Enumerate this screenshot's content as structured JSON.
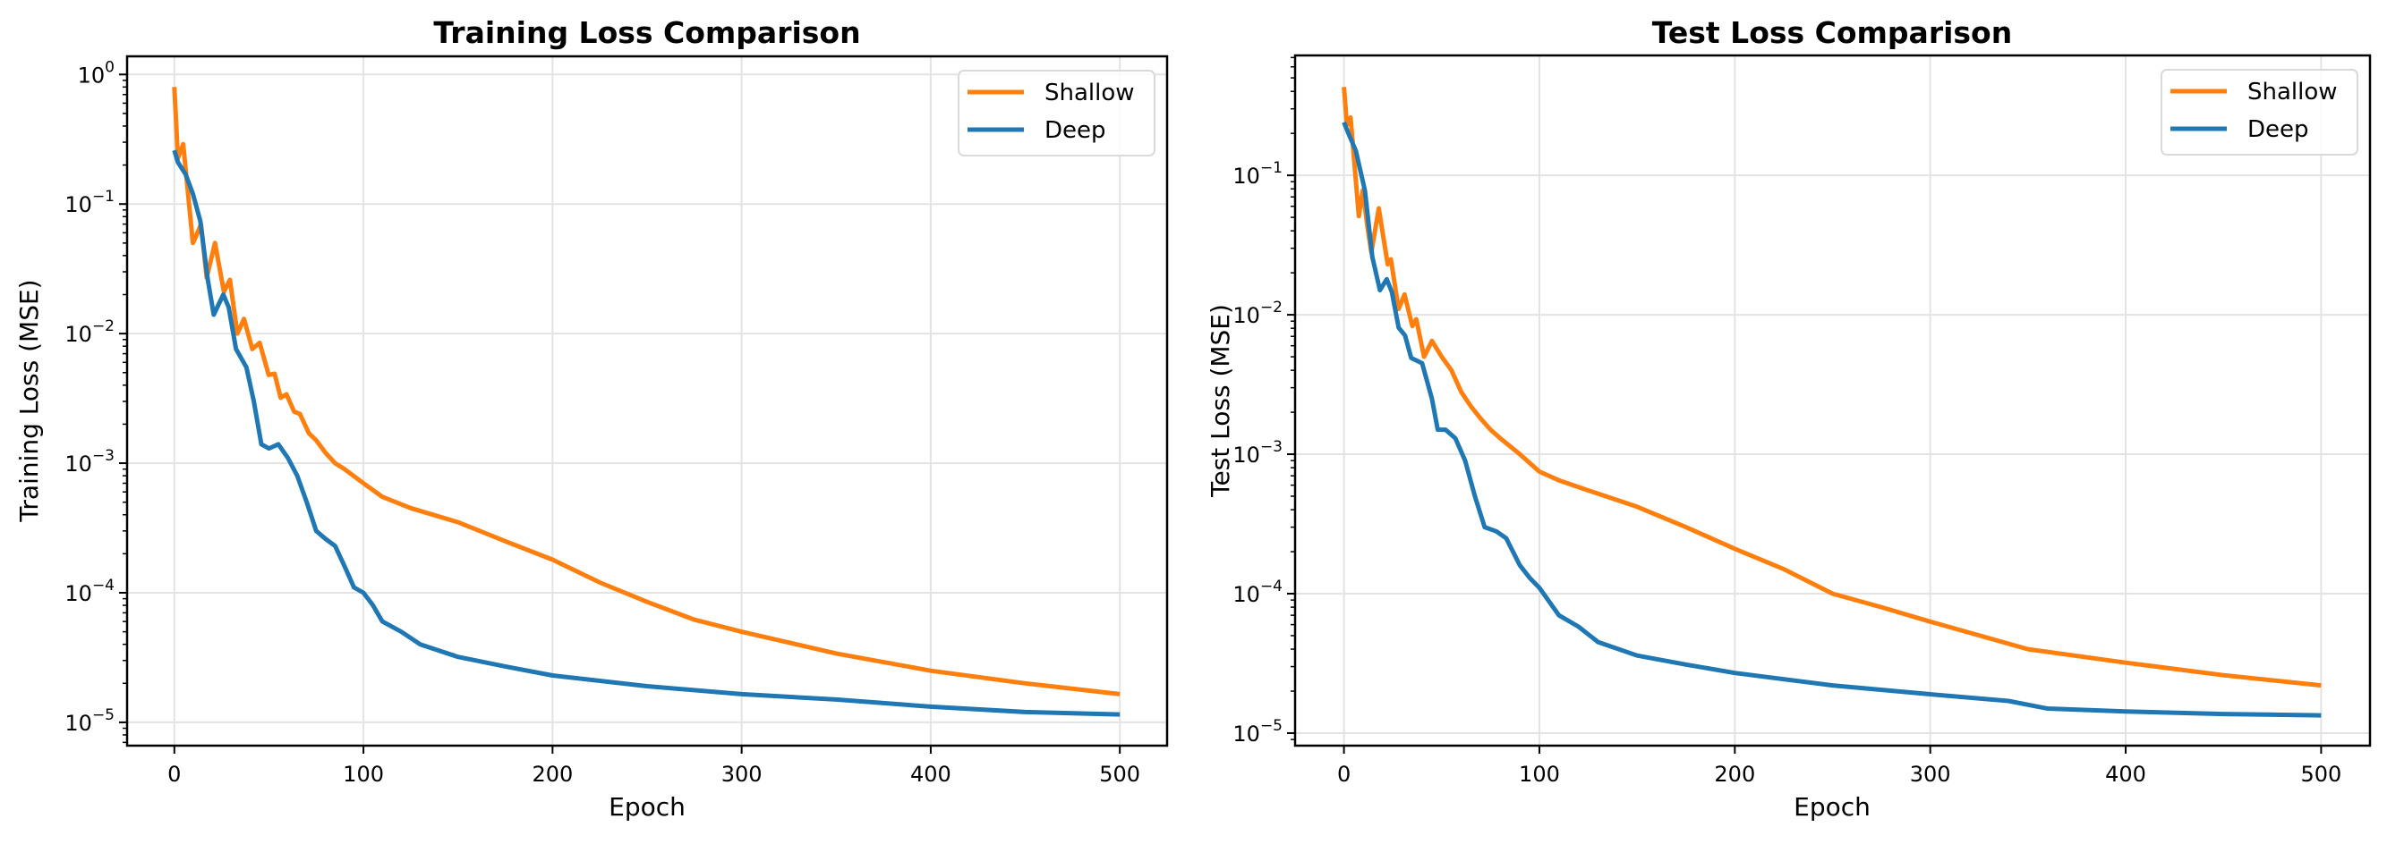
{
  "chart_data": [
    {
      "type": "line",
      "title": "Training Loss Comparison",
      "xlabel": "Epoch",
      "ylabel": "Training Loss (MSE)",
      "xlim": [
        -25,
        525
      ],
      "ylim_log10": [
        -5.18,
        0.14
      ],
      "yscale": "log",
      "xticks": [
        0,
        100,
        200,
        300,
        400,
        500
      ],
      "yticks_exp": [
        0,
        -1,
        -2,
        -3,
        -4,
        -5
      ],
      "grid": true,
      "legend": "top-right",
      "series": [
        {
          "name": "Shallow",
          "color": "#ff7f0e",
          "x": [
            0,
            1.9,
            4.7,
            9.8,
            11.6,
            14.1,
            17.1,
            21.5,
            26.2,
            29.4,
            33.3,
            36.8,
            41.2,
            45.1,
            49.9,
            53,
            56.2,
            59.3,
            63.3,
            66.4,
            71.2,
            75,
            80,
            85,
            90,
            100,
            110,
            125,
            150,
            175,
            200,
            225,
            250,
            275,
            300,
            350,
            400,
            450,
            500
          ],
          "y": [
            0.8,
            0.226,
            0.29,
            0.05,
            0.057,
            0.07,
            0.027,
            0.05,
            0.021,
            0.026,
            0.01,
            0.013,
            0.0076,
            0.0085,
            0.0048,
            0.0049,
            0.0032,
            0.0034,
            0.0025,
            0.0024,
            0.0017,
            0.0015,
            0.0012,
            0.001,
            0.0009,
            0.0007,
            0.00055,
            0.00045,
            0.00035,
            0.00025,
            0.00018,
            0.00012,
            8.5e-05,
            6.2e-05,
            5e-05,
            3.4e-05,
            2.5e-05,
            2e-05,
            1.65e-05
          ]
        },
        {
          "name": "Deep",
          "color": "#1f77b4",
          "x": [
            0,
            1.9,
            5.9,
            9.8,
            13.7,
            17.7,
            20.8,
            25.9,
            28.7,
            32.6,
            38.1,
            42,
            46,
            50,
            55,
            60,
            65,
            70,
            75,
            80,
            85,
            90,
            95,
            100,
            105,
            110,
            120,
            130,
            150,
            175,
            200,
            250,
            300,
            350,
            400,
            450,
            500
          ],
          "y": [
            0.26,
            0.21,
            0.17,
            0.12,
            0.074,
            0.026,
            0.014,
            0.02,
            0.016,
            0.0076,
            0.0055,
            0.003,
            0.0014,
            0.0013,
            0.0014,
            0.0011,
            0.0008,
            0.0005,
            0.0003,
            0.00026,
            0.00023,
            0.00016,
            0.00011,
            0.0001,
            8e-05,
            6e-05,
            5e-05,
            4e-05,
            3.2e-05,
            2.7e-05,
            2.3e-05,
            1.9e-05,
            1.65e-05,
            1.5e-05,
            1.32e-05,
            1.2e-05,
            1.15e-05
          ]
        }
      ]
    },
    {
      "type": "line",
      "title": "Test Loss Comparison",
      "xlabel": "Epoch",
      "ylabel": "Test Loss (MSE)",
      "xlim": [
        -25,
        525
      ],
      "ylim_log10": [
        -5.09,
        -0.14
      ],
      "yscale": "log",
      "xticks": [
        0,
        100,
        200,
        300,
        400,
        500
      ],
      "yticks_exp": [
        -1,
        -2,
        -3,
        -4,
        -5
      ],
      "grid": true,
      "legend": "top-right",
      "series": [
        {
          "name": "Shallow",
          "color": "#ff7f0e",
          "x": [
            0,
            1.5,
            3.4,
            7.6,
            9.6,
            12,
            14,
            17.8,
            22.4,
            24,
            28,
            31,
            35,
            37,
            41,
            45,
            50,
            55,
            60,
            65,
            70,
            75,
            80,
            90,
            100,
            110,
            125,
            150,
            175,
            200,
            225,
            250,
            275,
            300,
            350,
            400,
            450,
            500
          ],
          "y": [
            0.43,
            0.23,
            0.26,
            0.051,
            0.078,
            0.043,
            0.028,
            0.058,
            0.023,
            0.025,
            0.011,
            0.014,
            0.0083,
            0.0093,
            0.005,
            0.0065,
            0.005,
            0.004,
            0.0028,
            0.0022,
            0.0018,
            0.0015,
            0.0013,
            0.001,
            0.00075,
            0.00065,
            0.00055,
            0.00042,
            0.0003,
            0.00021,
            0.00015,
            0.0001,
            8e-05,
            6.3e-05,
            4e-05,
            3.2e-05,
            2.6e-05,
            2.2e-05
          ]
        },
        {
          "name": "Deep",
          "color": "#1f77b4",
          "x": [
            0,
            2.3,
            6.1,
            10.7,
            14.5,
            18.4,
            21.9,
            24.5,
            28,
            31.3,
            34.4,
            40,
            45,
            48,
            52,
            57,
            62,
            67,
            72,
            78,
            83,
            90,
            95,
            100,
            110,
            120,
            130,
            150,
            175,
            200,
            250,
            300,
            340,
            360,
            400,
            450,
            500
          ],
          "y": [
            0.24,
            0.2,
            0.15,
            0.078,
            0.026,
            0.015,
            0.018,
            0.0146,
            0.0081,
            0.0071,
            0.0049,
            0.0045,
            0.0025,
            0.0015,
            0.0015,
            0.0013,
            0.0009,
            0.0005,
            0.0003,
            0.00028,
            0.00025,
            0.00016,
            0.00013,
            0.00011,
            7e-05,
            5.8e-05,
            4.5e-05,
            3.6e-05,
            3.1e-05,
            2.7e-05,
            2.2e-05,
            1.9e-05,
            1.7e-05,
            1.5e-05,
            1.43e-05,
            1.37e-05,
            1.34e-05
          ]
        }
      ]
    }
  ]
}
